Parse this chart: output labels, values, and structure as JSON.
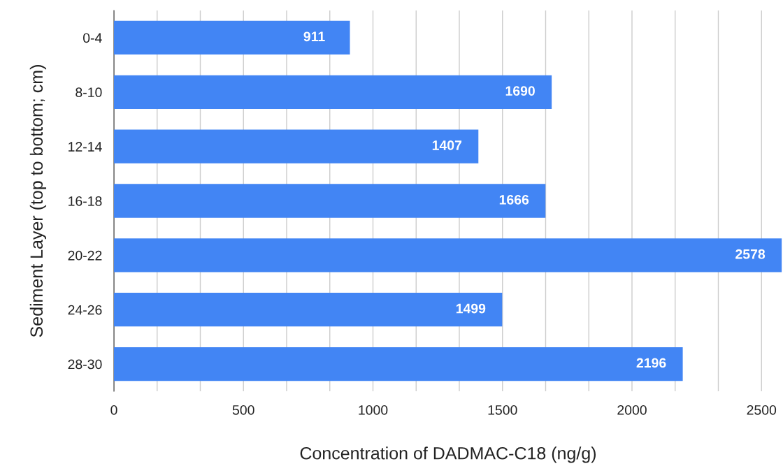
{
  "chart_data": {
    "type": "bar",
    "orientation": "horizontal",
    "xlabel": "Concentration of DADMAC-C18 (ng/g)",
    "ylabel": "Sediment Layer (top to bottom; cm)",
    "categories": [
      "0-4",
      "8-10",
      "12-14",
      "16-18",
      "20-22",
      "24-26",
      "28-30"
    ],
    "values": [
      911,
      1690,
      1407,
      1666,
      2578,
      1499,
      2196
    ],
    "color": "#4285f4",
    "data_labels": true,
    "xlim": [
      0,
      2580
    ],
    "xticks": [
      0,
      {
        "value": 166.67,
        "label": null
      },
      {
        "value": 333.33,
        "label": null
      },
      500,
      {
        "value": 666.67,
        "label": null
      },
      {
        "value": 833.33,
        "label": null
      },
      1000,
      {
        "value": 1166.67,
        "label": null
      },
      {
        "value": 1333.33,
        "label": null
      },
      1500,
      {
        "value": 1666.67,
        "label": null
      },
      {
        "value": 1833.33,
        "label": null
      },
      2000,
      {
        "value": 2166.67,
        "label": null
      },
      {
        "value": 2333.33,
        "label": null
      },
      2500
    ],
    "grid": "x"
  }
}
